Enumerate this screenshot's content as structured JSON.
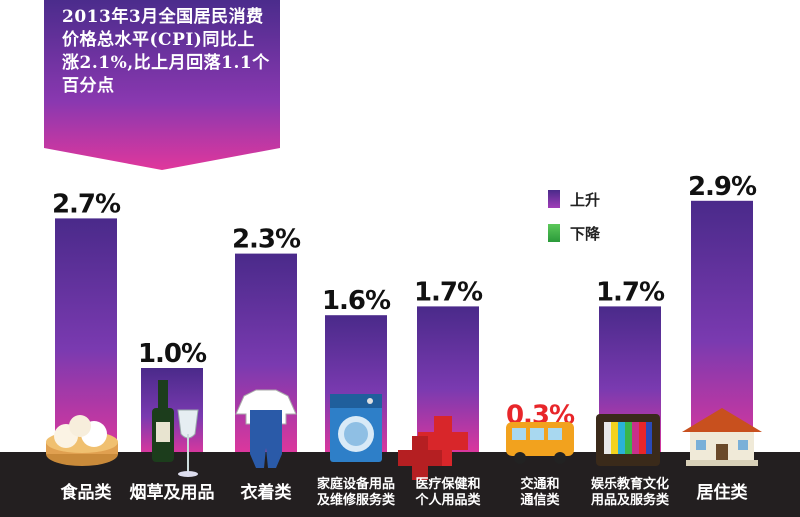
{
  "title": "2013年3月全国居民消费价格总水平(CPI)同比上涨2.1%,比上月回落1.1个百分点",
  "colors": {
    "rise_top": "#5a2f8f",
    "rise_mid": "#7a3fb0",
    "rise_bottom": "#d93aa0",
    "fall": "#3ab54a",
    "band": "#231f20",
    "label": "#111111",
    "label_red": "#e8262a"
  },
  "legend": [
    {
      "label": "上升",
      "color": "#6a3aa8"
    },
    {
      "label": "下降",
      "color": "#3ab54a"
    }
  ],
  "chart_data": {
    "type": "bar",
    "unit": "%",
    "categories": [
      "食品类",
      "烟草及用品",
      "衣着类",
      "家庭设备用品及维修服务类",
      "医疗保健和个人用品类",
      "交通和通信类",
      "娱乐教育文化用品及服务类",
      "居住类"
    ],
    "category_lines": [
      [
        "食品类"
      ],
      [
        "烟草及用品"
      ],
      [
        "衣着类"
      ],
      [
        "家庭设备用品",
        "及维修服务类"
      ],
      [
        "医疗保健和",
        "个人用品类"
      ],
      [
        "交通和",
        "通信类"
      ],
      [
        "娱乐教育文化",
        "用品及服务类"
      ],
      [
        "居住类"
      ]
    ],
    "values": [
      2.7,
      1.0,
      2.3,
      1.6,
      1.7,
      0.3,
      1.7,
      2.9
    ],
    "value_labels": [
      "2.7%",
      "1.0%",
      "2.3%",
      "1.6%",
      "1.7%",
      "0.3%",
      "1.7%",
      "2.9%"
    ],
    "direction": [
      "上升",
      "上升",
      "上升",
      "上升",
      "上升",
      "下降",
      "上升",
      "上升"
    ],
    "icons": [
      "steamed-buns-icon",
      "wine-bottle-icon",
      "clothing-icon",
      "washing-machine-icon",
      "medical-cross-icon",
      "bus-icon",
      "television-icon",
      "house-icon"
    ],
    "ylim": [
      0,
      3.2
    ],
    "grid": false,
    "legend_position": "top-right"
  }
}
